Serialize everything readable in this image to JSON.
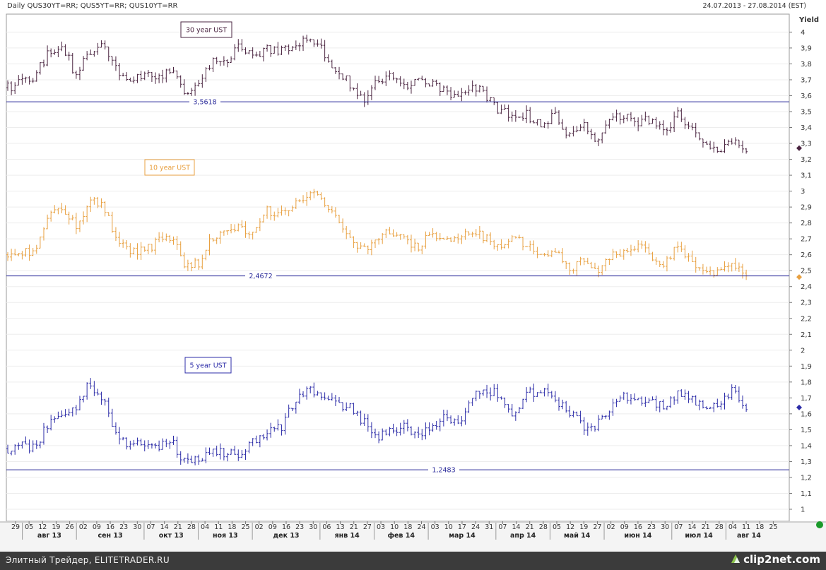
{
  "header": {
    "title": "Daily QUS30YT=RR; QUS5YT=RR; QUS10YT=RR",
    "date_range": "24.07.2013 - 27.08.2014 (EST)"
  },
  "footer": {
    "left_text": "Элитный Трейдер, ELITETRADER.RU",
    "logo_text": "clip2net.com"
  },
  "colors": {
    "us30": "#4a2440",
    "us10": "#e8a040",
    "us5": "#2c2ca8",
    "hline": "#2a2a9a",
    "status": "#1a9a2a"
  },
  "chart_data": {
    "type": "ohlc-bar",
    "title": "Daily QUS30YT=RR; QUS5YT=RR; QUS10YT=RR",
    "ylabel": "Yield",
    "ylim": [
      0.85,
      4.1
    ],
    "y_ticks": [
      "1",
      "1,1",
      "1,2",
      "1,3",
      "1,4",
      "1,5",
      "1,6",
      "1,7",
      "1,8",
      "1,9",
      "2",
      "2,1",
      "2,2",
      "2,3",
      "2,4",
      "2,5",
      "2,6",
      "2,7",
      "2,8",
      "2,9",
      "3",
      "3,1",
      "3,2",
      "3,3",
      "3,4",
      "3,5",
      "3,6",
      "3,7",
      "3,8",
      "3,9",
      "4"
    ],
    "y_tick_values": [
      1,
      1.1,
      1.2,
      1.3,
      1.4,
      1.5,
      1.6,
      1.7,
      1.8,
      1.9,
      2,
      2.1,
      2.2,
      2.3,
      2.4,
      2.5,
      2.6,
      2.7,
      2.8,
      2.9,
      3,
      3.1,
      3.2,
      3.3,
      3.4,
      3.5,
      3.6,
      3.7,
      3.8,
      3.9,
      4
    ],
    "x_day_labels": [
      "29",
      "05",
      "12",
      "19",
      "26",
      "02",
      "09",
      "16",
      "23",
      "30",
      "07",
      "14",
      "21",
      "28",
      "04",
      "11",
      "18",
      "25",
      "02",
      "09",
      "16",
      "23",
      "30",
      "06",
      "13",
      "21",
      "27",
      "03",
      "10",
      "18",
      "24",
      "03",
      "10",
      "17",
      "24",
      "31",
      "07",
      "14",
      "21",
      "28",
      "05",
      "12",
      "19",
      "27",
      "02",
      "09",
      "16",
      "23",
      "30",
      "07",
      "14",
      "21",
      "28",
      "04",
      "11",
      "18",
      "25"
    ],
    "x_month_labels": [
      "авг 13",
      "сен 13",
      "окт 13",
      "ноя 13",
      "дек 13",
      "янв 14",
      "фев 14",
      "мар 14",
      "апр 14",
      "май 14",
      "июн 14",
      "июл 14",
      "авг 14"
    ],
    "month_start_index": [
      1,
      5,
      10,
      14,
      18,
      23,
      27,
      31,
      36,
      40,
      44,
      49,
      53
    ],
    "series": [
      {
        "name": "30 year UST",
        "label": "30 year UST",
        "hline": 3.5618,
        "hline_label": "3,5618",
        "last_marker": 3.27,
        "anchors": [
          [
            0,
            3.65
          ],
          [
            1,
            3.68
          ],
          [
            2,
            3.72
          ],
          [
            3,
            3.88
          ],
          [
            4,
            3.92
          ],
          [
            5,
            3.72
          ],
          [
            6,
            3.88
          ],
          [
            7,
            3.92
          ],
          [
            8,
            3.75
          ],
          [
            9,
            3.7
          ],
          [
            10,
            3.72
          ],
          [
            11,
            3.72
          ],
          [
            12,
            3.78
          ],
          [
            13,
            3.58
          ],
          [
            14,
            3.68
          ],
          [
            15,
            3.83
          ],
          [
            16,
            3.8
          ],
          [
            17,
            3.92
          ],
          [
            18,
            3.82
          ],
          [
            19,
            3.9
          ],
          [
            20,
            3.88
          ],
          [
            21,
            3.9
          ],
          [
            22,
            3.98
          ],
          [
            23,
            3.88
          ],
          [
            24,
            3.75
          ],
          [
            25,
            3.68
          ],
          [
            26,
            3.58
          ],
          [
            27,
            3.68
          ],
          [
            28,
            3.72
          ],
          [
            29,
            3.65
          ],
          [
            30,
            3.72
          ],
          [
            31,
            3.68
          ],
          [
            32,
            3.62
          ],
          [
            33,
            3.58
          ],
          [
            34,
            3.66
          ],
          [
            35,
            3.6
          ],
          [
            36,
            3.5
          ],
          [
            37,
            3.48
          ],
          [
            38,
            3.48
          ],
          [
            39,
            3.4
          ],
          [
            40,
            3.48
          ],
          [
            41,
            3.35
          ],
          [
            42,
            3.42
          ],
          [
            43,
            3.3
          ],
          [
            44,
            3.45
          ],
          [
            45,
            3.48
          ],
          [
            46,
            3.42
          ],
          [
            47,
            3.45
          ],
          [
            48,
            3.38
          ],
          [
            49,
            3.48
          ],
          [
            50,
            3.38
          ],
          [
            51,
            3.28
          ],
          [
            52,
            3.25
          ],
          [
            53,
            3.3
          ],
          [
            54,
            3.27
          ]
        ]
      },
      {
        "name": "10 year UST",
        "label": "10 year UST",
        "hline": 2.4672,
        "hline_label": "2,4672",
        "last_marker": 2.46,
        "anchors": [
          [
            0,
            2.6
          ],
          [
            1,
            2.62
          ],
          [
            2,
            2.6
          ],
          [
            3,
            2.85
          ],
          [
            4,
            2.88
          ],
          [
            5,
            2.78
          ],
          [
            6,
            2.95
          ],
          [
            7,
            2.92
          ],
          [
            8,
            2.68
          ],
          [
            9,
            2.63
          ],
          [
            10,
            2.62
          ],
          [
            11,
            2.68
          ],
          [
            12,
            2.72
          ],
          [
            13,
            2.52
          ],
          [
            14,
            2.55
          ],
          [
            15,
            2.72
          ],
          [
            16,
            2.75
          ],
          [
            17,
            2.76
          ],
          [
            18,
            2.75
          ],
          [
            19,
            2.88
          ],
          [
            20,
            2.85
          ],
          [
            21,
            2.92
          ],
          [
            22,
            3.0
          ],
          [
            23,
            2.92
          ],
          [
            24,
            2.82
          ],
          [
            25,
            2.72
          ],
          [
            26,
            2.62
          ],
          [
            27,
            2.72
          ],
          [
            28,
            2.75
          ],
          [
            29,
            2.7
          ],
          [
            30,
            2.65
          ],
          [
            31,
            2.75
          ],
          [
            32,
            2.68
          ],
          [
            33,
            2.73
          ],
          [
            34,
            2.75
          ],
          [
            35,
            2.7
          ],
          [
            36,
            2.65
          ],
          [
            37,
            2.7
          ],
          [
            38,
            2.65
          ],
          [
            39,
            2.6
          ],
          [
            40,
            2.62
          ],
          [
            41,
            2.52
          ],
          [
            42,
            2.55
          ],
          [
            43,
            2.48
          ],
          [
            44,
            2.6
          ],
          [
            45,
            2.62
          ],
          [
            46,
            2.65
          ],
          [
            47,
            2.6
          ],
          [
            48,
            2.55
          ],
          [
            49,
            2.65
          ],
          [
            50,
            2.55
          ],
          [
            51,
            2.5
          ],
          [
            52,
            2.48
          ],
          [
            53,
            2.55
          ],
          [
            54,
            2.46
          ]
        ]
      },
      {
        "name": "5 year UST",
        "label": "5 year UST",
        "hline": 1.2483,
        "hline_label": "1,2483",
        "last_marker": 1.64,
        "anchors": [
          [
            0,
            1.38
          ],
          [
            1,
            1.4
          ],
          [
            2,
            1.38
          ],
          [
            3,
            1.55
          ],
          [
            4,
            1.62
          ],
          [
            5,
            1.62
          ],
          [
            6,
            1.8
          ],
          [
            7,
            1.68
          ],
          [
            8,
            1.45
          ],
          [
            9,
            1.4
          ],
          [
            10,
            1.42
          ],
          [
            11,
            1.4
          ],
          [
            12,
            1.42
          ],
          [
            13,
            1.28
          ],
          [
            14,
            1.32
          ],
          [
            15,
            1.38
          ],
          [
            16,
            1.35
          ],
          [
            17,
            1.35
          ],
          [
            18,
            1.42
          ],
          [
            19,
            1.5
          ],
          [
            20,
            1.52
          ],
          [
            21,
            1.68
          ],
          [
            22,
            1.75
          ],
          [
            23,
            1.72
          ],
          [
            24,
            1.65
          ],
          [
            25,
            1.65
          ],
          [
            26,
            1.55
          ],
          [
            27,
            1.45
          ],
          [
            28,
            1.5
          ],
          [
            29,
            1.52
          ],
          [
            30,
            1.48
          ],
          [
            31,
            1.52
          ],
          [
            32,
            1.6
          ],
          [
            33,
            1.52
          ],
          [
            34,
            1.72
          ],
          [
            35,
            1.75
          ],
          [
            36,
            1.72
          ],
          [
            37,
            1.58
          ],
          [
            38,
            1.72
          ],
          [
            39,
            1.75
          ],
          [
            40,
            1.68
          ],
          [
            41,
            1.62
          ],
          [
            42,
            1.52
          ],
          [
            43,
            1.52
          ],
          [
            44,
            1.62
          ],
          [
            45,
            1.7
          ],
          [
            46,
            1.7
          ],
          [
            47,
            1.68
          ],
          [
            48,
            1.65
          ],
          [
            49,
            1.72
          ],
          [
            50,
            1.68
          ],
          [
            51,
            1.65
          ],
          [
            52,
            1.68
          ],
          [
            53,
            1.75
          ],
          [
            54,
            1.64
          ]
        ]
      }
    ]
  }
}
